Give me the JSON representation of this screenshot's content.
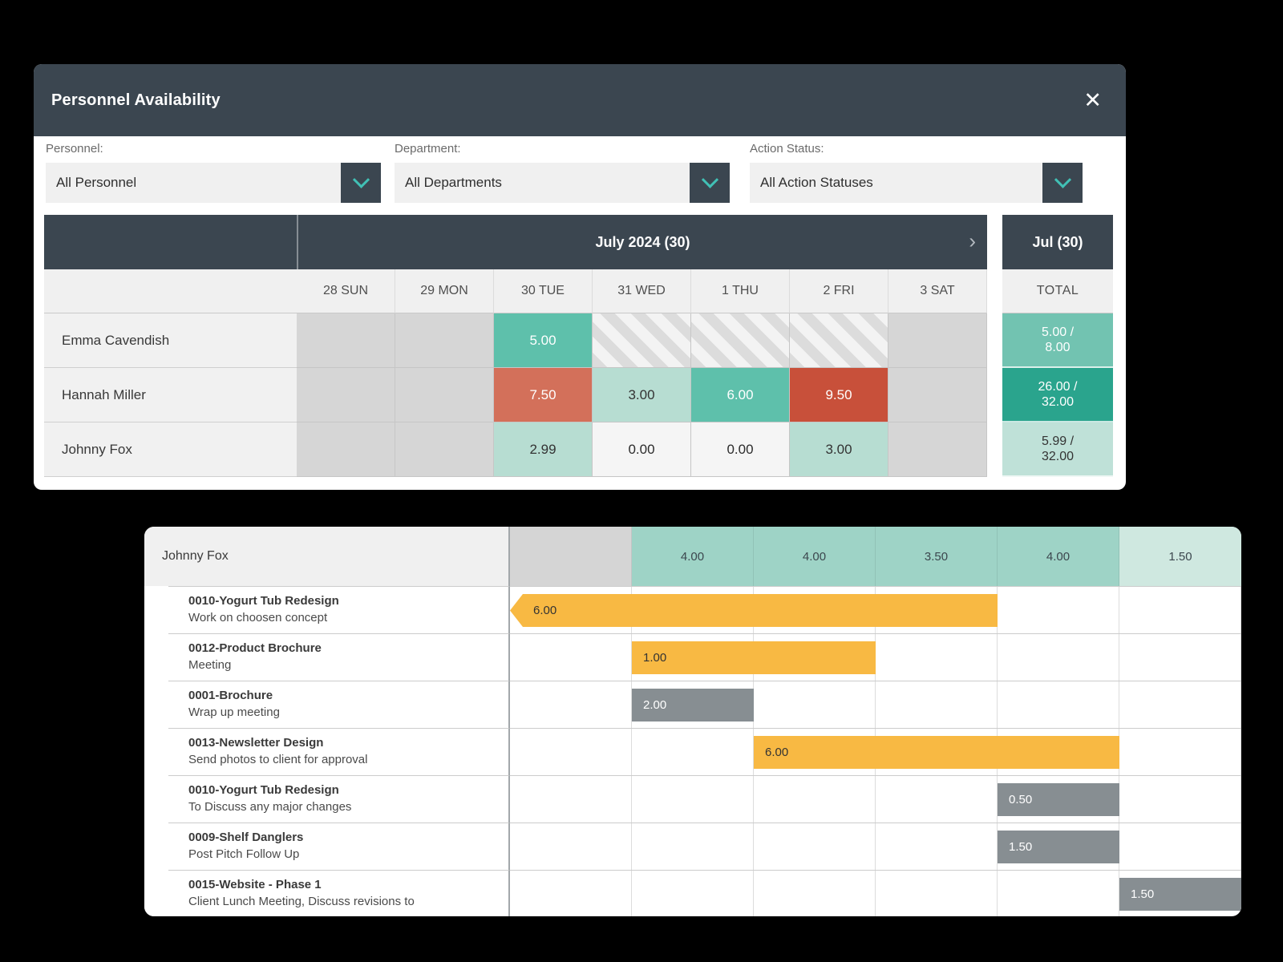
{
  "colors": {
    "header_dark": "#3b4650",
    "accent_teal": "#41c0b5",
    "cell_teal": "#5ec0ab",
    "cell_light_teal": "#b7ddd2",
    "cell_salmon": "#d3705a",
    "cell_red": "#c8503a",
    "total_medium_teal": "#72c3b1",
    "total_dark_teal": "#2aa48d",
    "total_light_teal": "#bfe1d8",
    "bar_orange": "#f8b943",
    "bar_gray": "#878e92",
    "gantt_header_teal": "#9ed3c6",
    "gantt_header_light_teal": "#cfe8e0"
  },
  "icons": {
    "close": "✕",
    "month_next": "›"
  },
  "modal": {
    "title": "Personnel Availability",
    "filters": [
      {
        "label": "Personnel:",
        "value": "All Personnel"
      },
      {
        "label": "Department:",
        "value": "All Departments"
      },
      {
        "label": "Action Status:",
        "value": "All Action Statuses"
      }
    ],
    "calendar": {
      "month_label": "July 2024 (30)",
      "total_month_label": "Jul (30)",
      "total_column_label": "TOTAL",
      "days": [
        "28 SUN",
        "29 MON",
        "30 TUE",
        "31 WED",
        "1 THU",
        "2 FRI",
        "3 SAT"
      ],
      "rows": [
        {
          "name": "Emma Cavendish",
          "cells": [
            {
              "variant": "weekend",
              "value": ""
            },
            {
              "variant": "weekend",
              "value": ""
            },
            {
              "variant": "teal",
              "value": "5.00"
            },
            {
              "variant": "hatch",
              "value": ""
            },
            {
              "variant": "hatch",
              "value": ""
            },
            {
              "variant": "hatch",
              "value": ""
            },
            {
              "variant": "weekend",
              "value": ""
            }
          ],
          "total": {
            "variant": "med",
            "line1": "5.00 /",
            "line2": "8.00"
          }
        },
        {
          "name": "Hannah Miller",
          "cells": [
            {
              "variant": "weekend",
              "value": ""
            },
            {
              "variant": "weekend",
              "value": ""
            },
            {
              "variant": "salmon",
              "value": "7.50"
            },
            {
              "variant": "lteal",
              "value": "3.00"
            },
            {
              "variant": "teal",
              "value": "6.00"
            },
            {
              "variant": "red",
              "value": "9.50"
            },
            {
              "variant": "weekend",
              "value": ""
            }
          ],
          "total": {
            "variant": "dark",
            "line1": "26.00 /",
            "line2": "32.00"
          }
        },
        {
          "name": "Johnny Fox",
          "cells": [
            {
              "variant": "weekend",
              "value": ""
            },
            {
              "variant": "weekend",
              "value": ""
            },
            {
              "variant": "lteal",
              "value": "2.99"
            },
            {
              "variant": "plain",
              "value": "0.00"
            },
            {
              "variant": "plain",
              "value": "0.00"
            },
            {
              "variant": "lteal",
              "value": "3.00"
            },
            {
              "variant": "weekend",
              "value": ""
            }
          ],
          "total": {
            "variant": "light",
            "line1": "5.99 /",
            "line2": "32.00"
          }
        }
      ]
    }
  },
  "gantt": {
    "person": "Johnny Fox",
    "header_cells": [
      {
        "variant": "gray",
        "value": ""
      },
      {
        "variant": "teal",
        "value": "4.00"
      },
      {
        "variant": "teal",
        "value": "4.00"
      },
      {
        "variant": "teal",
        "value": "3.50"
      },
      {
        "variant": "teal",
        "value": "4.00"
      },
      {
        "variant": "light",
        "value": "1.50"
      }
    ],
    "tasks": [
      {
        "title": "0010-Yogurt Tub Redesign",
        "desc": "Work on choosen concept",
        "bar": {
          "value": "6.00",
          "color": "orange",
          "start": 0,
          "span": 4,
          "arrow": true
        }
      },
      {
        "title": "0012-Product Brochure",
        "desc": "Meeting",
        "bar": {
          "value": "1.00",
          "color": "orange",
          "start": 1,
          "span": 2
        }
      },
      {
        "title": "0001-Brochure",
        "desc": "Wrap up meeting",
        "bar": {
          "value": "2.00",
          "color": "gray",
          "start": 1,
          "span": 1
        }
      },
      {
        "title": "0013-Newsletter Design",
        "desc": "Send photos to client for approval",
        "bar": {
          "value": "6.00",
          "color": "orange",
          "start": 2,
          "span": 3
        }
      },
      {
        "title": "0010-Yogurt Tub Redesign",
        "desc": "To Discuss any major changes",
        "bar": {
          "value": "0.50",
          "color": "gray",
          "start": 4,
          "span": 1
        }
      },
      {
        "title": "0009-Shelf Danglers",
        "desc": "Post Pitch Follow Up",
        "bar": {
          "value": "1.50",
          "color": "gray",
          "start": 4,
          "span": 1
        }
      },
      {
        "title": "0015-Website - Phase 1",
        "desc": "Client Lunch Meeting, Discuss revisions to",
        "bar": {
          "value": "1.50",
          "color": "gray",
          "start": 5,
          "span": 1
        }
      }
    ]
  }
}
